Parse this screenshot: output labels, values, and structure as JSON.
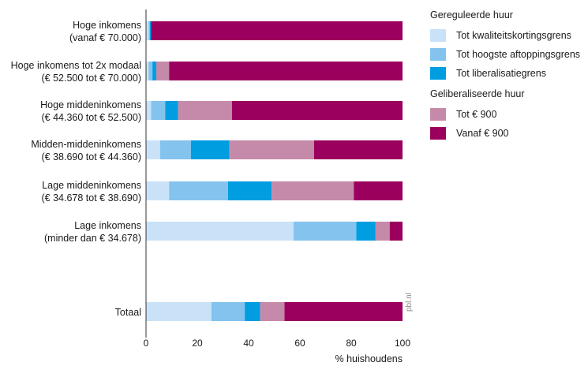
{
  "chart_data": {
    "type": "bar",
    "orientation": "horizontal",
    "stacked": true,
    "categories": [
      {
        "line1": "Hoge inkomens",
        "line2": "(vanaf € 70.000)"
      },
      {
        "line1": "Hoge inkomens tot 2x modaal",
        "line2": "(€ 52.500 tot € 70.000)"
      },
      {
        "line1": "Hoge middeninkomens",
        "line2": "(€ 44.360 tot € 52.500)"
      },
      {
        "line1": "Midden-middeninkomens",
        "line2": "(€ 38.690 tot € 44.360)"
      },
      {
        "line1": "Lage middeninkomens",
        "line2": "(€ 34.678 tot € 38.690)"
      },
      {
        "line1": "Lage inkomens",
        "line2": "(minder dan € 34.678)"
      },
      {
        "line1": "Totaal",
        "line2": ""
      }
    ],
    "series": [
      {
        "name": "Tot kwaliteitskortingsgrens",
        "color": "#c9e2f7",
        "values": [
          1,
          1,
          2,
          5.5,
          9,
          57.5,
          25.5
        ]
      },
      {
        "name": "Tot hoogste aftoppingsgrens",
        "color": "#84c3ee",
        "values": [
          0.5,
          1.5,
          5.5,
          12,
          23,
          24.5,
          13
        ]
      },
      {
        "name": "Tot liberalisatiegrens",
        "color": "#009de0",
        "values": [
          0.5,
          1.5,
          5,
          15,
          17,
          7.5,
          6
        ]
      },
      {
        "name": "Tot € 900",
        "color": "#c58aaa",
        "values": [
          0,
          5,
          21,
          33,
          32,
          5.5,
          9.5
        ]
      },
      {
        "name": "Vanaf € 900",
        "color": "#9c005e",
        "values": [
          98,
          91,
          66.5,
          34.5,
          19,
          5,
          46
        ]
      }
    ],
    "xlabel": "% huishoudens",
    "xlim": [
      0,
      100
    ],
    "xticks": [
      0,
      20,
      40,
      60,
      80,
      100
    ],
    "grid": false,
    "legend_position": "right"
  },
  "legend": {
    "groups": [
      {
        "title": "Gereguleerde huur",
        "series": [
          0,
          1,
          2
        ]
      },
      {
        "title": "Geliberaliseerde huur",
        "series": [
          3,
          4
        ]
      }
    ]
  },
  "source": "pbl.nl"
}
